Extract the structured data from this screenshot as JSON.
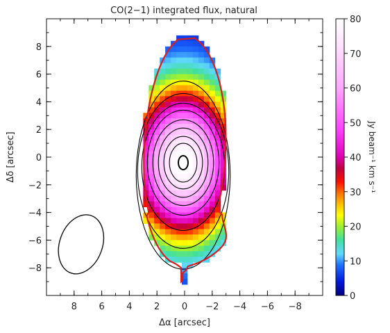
{
  "chart_data": {
    "type": "heatmap",
    "title": "CO(2−1) integrated flux, natural",
    "xlabel": "Δα [arcsec]",
    "ylabel": "Δδ [arcsec]",
    "xlim": [
      10,
      -10
    ],
    "ylim": [
      -10,
      10
    ],
    "x_ticks": [
      8,
      6,
      4,
      2,
      0,
      -2,
      -4,
      -6,
      -8
    ],
    "y_ticks": [
      8,
      6,
      4,
      2,
      0,
      -2,
      -4,
      -6,
      -8
    ],
    "x_tick_labels": [
      "8",
      "6",
      "4",
      "2",
      "0",
      "−2",
      "−4",
      "−6",
      "−8"
    ],
    "y_tick_labels": [
      "8",
      "6",
      "4",
      "2",
      "0",
      "−2",
      "−4",
      "−6",
      "−8"
    ],
    "colorbar": {
      "label": "Jy beam⁻¹ km s⁻¹",
      "range": [
        0,
        80
      ],
      "ticks": [
        0,
        10,
        20,
        30,
        40,
        50,
        60,
        70,
        80
      ],
      "tick_labels": [
        "0",
        "10",
        "20",
        "30",
        "40",
        "50",
        "60",
        "70",
        "80"
      ]
    },
    "peak_position": [
      0.1,
      -0.4
    ],
    "peak_value": 80,
    "contour_color": "#000000",
    "outer_contour_color": "#d42020",
    "beam": {
      "center": [
        7.5,
        -6.3
      ],
      "major_arcsec": 4.4,
      "minor_arcsec": 3.1,
      "angle_deg": 20
    }
  }
}
